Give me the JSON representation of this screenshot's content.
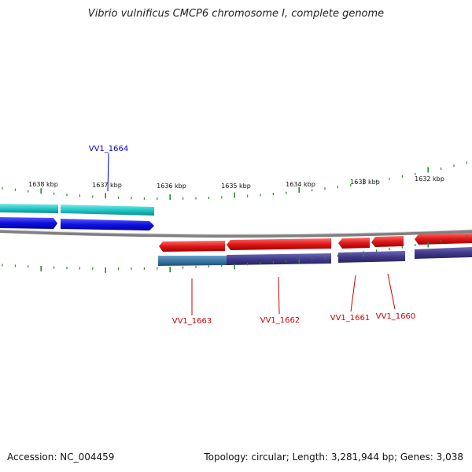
{
  "title": "Vibrio vulnificus CMCP6 chromosome I, complete genome",
  "footer": {
    "accession": "Accession: NC_004459",
    "summary": "Topology: circular; Length: 3,281,944 bp; Genes: 3,038"
  },
  "ticks": [
    "1638 kbp",
    "1637 kbp",
    "1636 kbp",
    "1635 kbp",
    "1634 kbp",
    "1633 kbp",
    "1632 kbp"
  ],
  "genes": [
    {
      "label": "VV1_1664",
      "strand": "forward",
      "color": "#0000cc"
    },
    {
      "label": "VV1_1663",
      "strand": "reverse",
      "color": "#cc0000"
    },
    {
      "label": "VV1_1662",
      "strand": "reverse",
      "color": "#cc0000"
    },
    {
      "label": "VV1_1661",
      "strand": "reverse",
      "color": "#cc0000"
    },
    {
      "label": "VV1_1660",
      "strand": "reverse",
      "color": "#cc0000"
    }
  ],
  "colors": {
    "forward_feature": "#1010e0",
    "forward_cds": "#22c8c8",
    "reverse_feature": "#e01818",
    "reverse_cds_a": "#3a78a8",
    "reverse_cds_b": "#403a88",
    "backbone": "#808080",
    "tick": "#2a8a2a"
  }
}
